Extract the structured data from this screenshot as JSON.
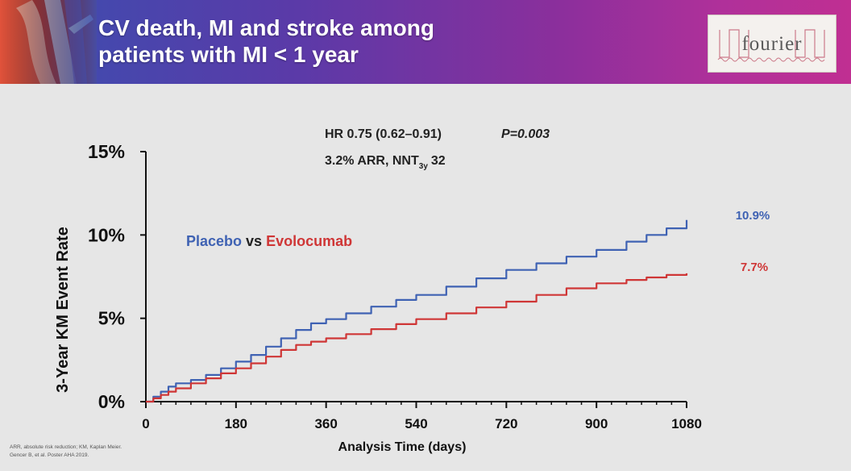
{
  "slide": {
    "title_line1": "CV death, MI and stroke among",
    "title_line2": "patients with MI < 1 year",
    "logo_text": "fourier",
    "footnote_line1": "ARR, absolute risk reduction; KM, Kaplan Meier.",
    "footnote_line2": "Gencer B, et al. Poster AHA 2019."
  },
  "colors": {
    "placebo": "#3f62b3",
    "evolocumab": "#cf3636",
    "axis": "#111111"
  },
  "chart_data": {
    "type": "line",
    "title": "",
    "xlabel": "Analysis Time (days)",
    "ylabel": "3-Year KM Event Rate",
    "xlim": [
      0,
      1080
    ],
    "ylim": [
      0,
      15
    ],
    "xticks": [
      0,
      180,
      360,
      540,
      720,
      900,
      1080
    ],
    "yticks": [
      0,
      5,
      10,
      15
    ],
    "ytick_labels": [
      "0%",
      "5%",
      "10%",
      "15%"
    ],
    "legend": {
      "placebo": "Placebo",
      "connector": "vs",
      "evolocumab": "Evolocumab"
    },
    "stats": {
      "hr": "HR 0.75 (0.62–0.91)",
      "p": "P=0.003",
      "arr_prefix": "3.2% ARR, NNT",
      "nnt_sub": "3y",
      "nnt_value": "32"
    },
    "series": [
      {
        "name": "Placebo",
        "end_label": "10.9%",
        "x": [
          0,
          15,
          30,
          45,
          60,
          90,
          120,
          150,
          180,
          210,
          240,
          270,
          300,
          330,
          360,
          400,
          450,
          500,
          540,
          600,
          660,
          720,
          780,
          840,
          900,
          960,
          1000,
          1040,
          1080
        ],
        "y": [
          0,
          0.3,
          0.6,
          0.9,
          1.1,
          1.3,
          1.6,
          2.0,
          2.4,
          2.8,
          3.3,
          3.8,
          4.3,
          4.7,
          4.95,
          5.3,
          5.7,
          6.1,
          6.4,
          6.9,
          7.4,
          7.9,
          8.3,
          8.7,
          9.1,
          9.6,
          10.0,
          10.4,
          10.9
        ]
      },
      {
        "name": "Evolocumab",
        "end_label": "7.7%",
        "x": [
          0,
          15,
          30,
          45,
          60,
          90,
          120,
          150,
          180,
          210,
          240,
          270,
          300,
          330,
          360,
          400,
          450,
          500,
          540,
          600,
          660,
          720,
          780,
          840,
          900,
          960,
          1000,
          1040,
          1080
        ],
        "y": [
          0,
          0.2,
          0.4,
          0.6,
          0.8,
          1.1,
          1.4,
          1.7,
          2.0,
          2.3,
          2.7,
          3.1,
          3.4,
          3.6,
          3.8,
          4.05,
          4.35,
          4.65,
          4.95,
          5.3,
          5.65,
          6.0,
          6.4,
          6.8,
          7.1,
          7.3,
          7.45,
          7.6,
          7.7
        ]
      }
    ]
  }
}
